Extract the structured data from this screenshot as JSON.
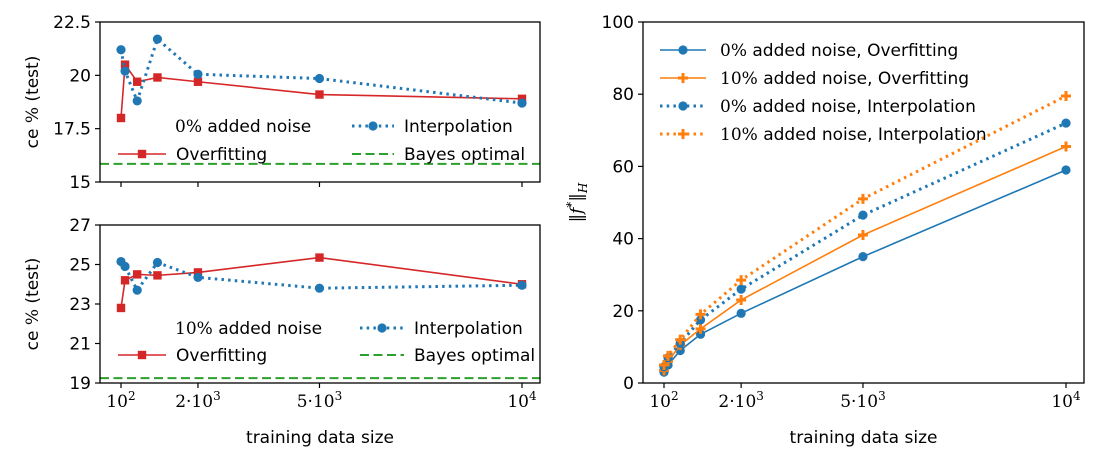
{
  "chart_data": [
    {
      "type": "line",
      "subplot": "top-left",
      "ylabel": "ce % (test)",
      "xlabel": "",
      "ylim": [
        15,
        22.5
      ],
      "yticks": [
        "15",
        "17.5",
        "20",
        "22.5"
      ],
      "legend": {
        "title": "0% added noise",
        "placement": "lower center",
        "columns": 2
      },
      "series": [
        {
          "name": "Overfitting",
          "color": "#d62728",
          "marker": "square",
          "dash": "solid",
          "x": [
            100,
            200,
            500,
            1000,
            2000,
            5000,
            10000
          ],
          "y": [
            18.0,
            20.5,
            19.7,
            19.9,
            19.7,
            19.1,
            18.9
          ]
        },
        {
          "name": "Interpolation",
          "color": "#1f77b4",
          "marker": "circle",
          "dash": "dotted",
          "x": [
            100,
            200,
            500,
            1000,
            2000,
            5000,
            10000
          ],
          "y": [
            21.2,
            20.2,
            18.8,
            21.7,
            20.05,
            19.85,
            18.7
          ]
        },
        {
          "name": "Bayes optimal",
          "color": "#2ca02c",
          "marker": "none",
          "dash": "dashed",
          "hline": 15.85
        }
      ]
    },
    {
      "type": "line",
      "subplot": "bottom-left",
      "ylabel": "ce % (test)",
      "xlabel": "training data size",
      "ylim": [
        19,
        27
      ],
      "yticks": [
        "19",
        "21",
        "23",
        "25",
        "27"
      ],
      "legend": {
        "title": "10% added noise",
        "placement": "lower center",
        "columns": 2
      },
      "series": [
        {
          "name": "Overfitting",
          "color": "#d62728",
          "marker": "square",
          "dash": "solid",
          "x": [
            100,
            200,
            500,
            1000,
            2000,
            5000,
            10000
          ],
          "y": [
            22.8,
            24.2,
            24.5,
            24.45,
            24.6,
            25.35,
            24.0
          ]
        },
        {
          "name": "Interpolation",
          "color": "#1f77b4",
          "marker": "circle",
          "dash": "dotted",
          "x": [
            100,
            200,
            500,
            1000,
            2000,
            5000,
            10000
          ],
          "y": [
            25.15,
            24.9,
            23.7,
            25.1,
            24.35,
            23.8,
            23.95
          ]
        },
        {
          "name": "Bayes optimal",
          "color": "#2ca02c",
          "marker": "none",
          "dash": "dashed",
          "hline": 19.25
        }
      ]
    },
    {
      "type": "line",
      "subplot": "right",
      "ylabel": "‖f*‖_H",
      "xlabel": "training data size",
      "ylim": [
        0,
        100
      ],
      "yticks": [
        "0",
        "20",
        "40",
        "60",
        "80",
        "100"
      ],
      "legend": {
        "placement": "upper left",
        "columns": 1
      },
      "series": [
        {
          "name": "0% added noise, Overfitting",
          "color": "#1f77b4",
          "marker": "circle",
          "dash": "solid",
          "x": [
            100,
            200,
            500,
            1000,
            2000,
            5000,
            10000
          ],
          "y": [
            3.0,
            5.0,
            9.0,
            13.5,
            19.3,
            35.0,
            59.0
          ]
        },
        {
          "name": "10% added noise, Overfitting",
          "color": "#ff7f0e",
          "marker": "plus",
          "dash": "solid",
          "x": [
            100,
            200,
            500,
            1000,
            2000,
            5000,
            10000
          ],
          "y": [
            3.5,
            6.0,
            10.5,
            15.0,
            23.0,
            41.0,
            65.5
          ]
        },
        {
          "name": "0% added noise, Interpolation",
          "color": "#1f77b4",
          "marker": "circle",
          "dash": "dotted",
          "x": [
            100,
            200,
            500,
            1000,
            2000,
            5000,
            10000
          ],
          "y": [
            4.5,
            7.0,
            11.0,
            17.5,
            26.0,
            46.5,
            72.0
          ]
        },
        {
          "name": "10% added noise, Interpolation",
          "color": "#ff7f0e",
          "marker": "plus",
          "dash": "dotted",
          "x": [
            100,
            200,
            500,
            1000,
            2000,
            5000,
            10000
          ],
          "y": [
            5.0,
            7.5,
            12.0,
            19.0,
            28.5,
            51.0,
            79.5
          ]
        }
      ]
    }
  ],
  "axes": {
    "xticks": [
      "10^2",
      "2·10^3",
      "5·10^3",
      "10^4"
    ],
    "xtick_values": [
      100,
      2000,
      5000,
      10000
    ]
  }
}
